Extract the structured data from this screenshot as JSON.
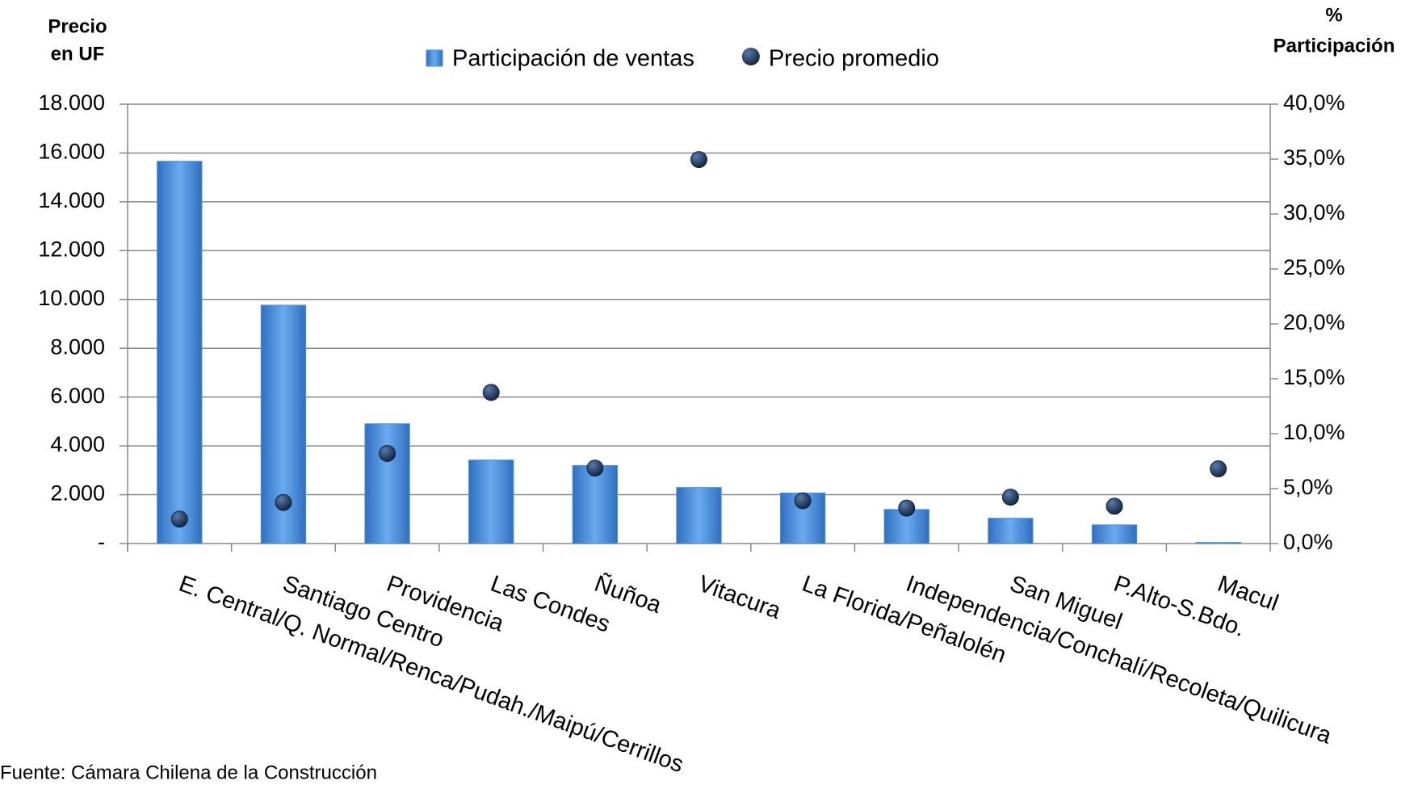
{
  "chart_data": {
    "type": "bar-scatter",
    "y_label_lines": [
      "Precio",
      "en UF"
    ],
    "y2_label_lines": [
      "%",
      "Participación"
    ],
    "source": "Fuente: Cámara Chilena de la Construcción",
    "categories": [
      "E. Central/Q. Normal/Renca/Pudah./Maipú/Cerrillos",
      "Santiago Centro",
      "Providencia",
      "Las Condes",
      "Ñuñoa",
      "Vitacura",
      "La Florida/Peñalolén",
      "Independencia/Conchalí/Recoleta/Quilicura",
      "San Miguel",
      "P.Alto-S.Bdo.",
      "Macul"
    ],
    "series": [
      {
        "name": "Participación de ventas",
        "color": "#4a8fd9",
        "axis": "y2",
        "kind": "bar",
        "values": [
          34.8,
          21.7,
          10.9,
          7.6,
          7.1,
          5.1,
          4.6,
          3.1,
          2.3,
          1.7,
          0.1
        ]
      },
      {
        "name": "Precio promedio",
        "color": "#0f2747",
        "axis": "y",
        "kind": "point",
        "values": [
          1000,
          1680,
          3690,
          6190,
          3090,
          15730,
          1750,
          1450,
          1900,
          1530,
          3060
        ]
      }
    ],
    "ylim": [
      0,
      18000
    ],
    "yticks": [
      {
        "value": 0,
        "label": "-"
      },
      {
        "value": 2000,
        "label": "2.000"
      },
      {
        "value": 4000,
        "label": "4.000"
      },
      {
        "value": 6000,
        "label": "6.000"
      },
      {
        "value": 8000,
        "label": "8.000"
      },
      {
        "value": 10000,
        "label": "10.000"
      },
      {
        "value": 12000,
        "label": "12.000"
      },
      {
        "value": 14000,
        "label": "14.000"
      },
      {
        "value": 16000,
        "label": "16.000"
      },
      {
        "value": 18000,
        "label": "18.000"
      }
    ],
    "y2lim": [
      0,
      40
    ],
    "y2ticks": [
      {
        "value": 0,
        "label": "0,0%"
      },
      {
        "value": 5,
        "label": "5,0%"
      },
      {
        "value": 10,
        "label": "10,0%"
      },
      {
        "value": 15,
        "label": "15,0%"
      },
      {
        "value": 20,
        "label": "20,0%"
      },
      {
        "value": 25,
        "label": "25,0%"
      },
      {
        "value": 30,
        "label": "30,0%"
      },
      {
        "value": 35,
        "label": "35,0%"
      },
      {
        "value": 40,
        "label": "40,0%"
      }
    ],
    "grid": true
  }
}
